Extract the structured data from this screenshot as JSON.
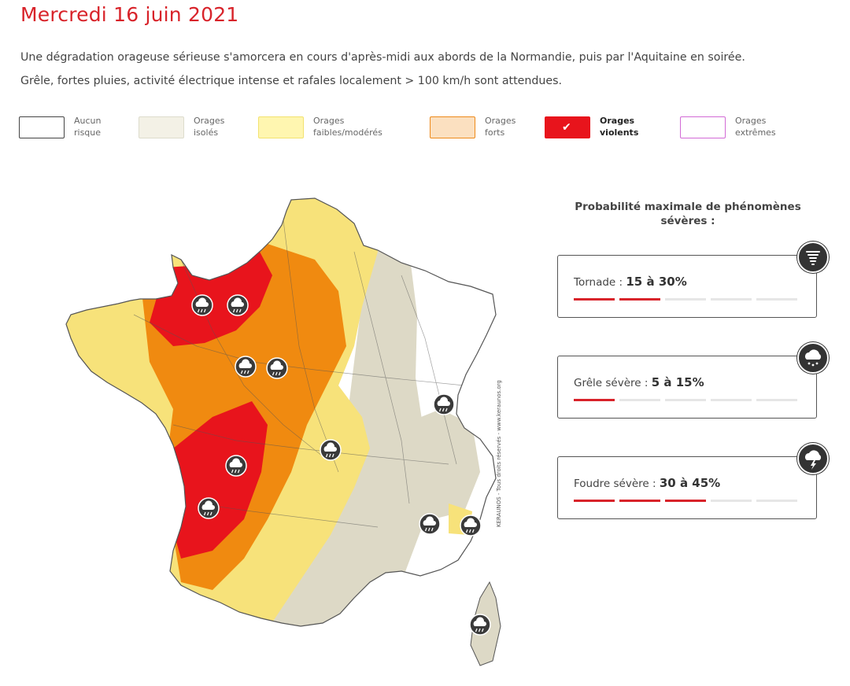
{
  "header": {
    "title": "Mercredi 16 juin 2021",
    "description_line1": "Une dégradation orageuse sérieuse s'amorcera en cours d'après-midi aux abords de la Normandie, puis par l'Aquitaine en soirée.",
    "description_line2": "Grêle, fortes pluies, activité électrique intense et rafales localement > 100 km/h sont attendues."
  },
  "legend": [
    {
      "label": "Aucun\nrisque",
      "color": "#ffffff",
      "border": "#444444",
      "selected": false
    },
    {
      "label": "Orages\nisolés",
      "color": "#f3f1e6",
      "border": "#dddccc",
      "selected": false
    },
    {
      "label": "Orages\nfaibles/modérés",
      "color": "#fff6b0",
      "border": "#f2e270",
      "selected": false
    },
    {
      "label": "Orages\nforts",
      "color": "#fbe0c0",
      "border": "#ee8a1a",
      "selected": false
    },
    {
      "label": "Orages\nviolents",
      "color": "#e8141c",
      "border": "#e8141c",
      "selected": true
    },
    {
      "label": "Orages\nextrêmes",
      "color": "#ffffff",
      "border": "#d26ad6",
      "selected": false
    }
  ],
  "map": {
    "credit": "KERAUNOS - Tous droits réservés - www.keraunos.org",
    "colors": {
      "none": "#ffffff",
      "isolated": "#ddd9c6",
      "weak": "#f7e27a",
      "strong": "#f08a10",
      "violent": "#e8141c",
      "icon": "#3a3a3a"
    },
    "storm_icons": 11
  },
  "probabilities": {
    "title": "Probabilité maximale de phénomènes sévères :",
    "items": [
      {
        "label": "Tornade",
        "value": "15 à 30%",
        "filled_segments": 2,
        "total_segments": 5,
        "icon": "tornado-icon"
      },
      {
        "label": "Grêle sévère",
        "value": "5 à 15%",
        "filled_segments": 1,
        "total_segments": 5,
        "icon": "hail-cloud-icon"
      },
      {
        "label": "Foudre sévère",
        "value": "30 à 45%",
        "filled_segments": 3,
        "total_segments": 5,
        "icon": "lightning-cloud-icon"
      }
    ]
  }
}
